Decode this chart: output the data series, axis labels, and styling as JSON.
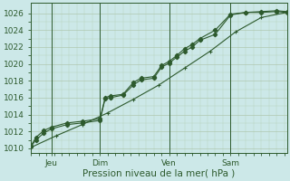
{
  "xlabel": "Pression niveau de la mer( hPa )",
  "bg_color": "#cce8e8",
  "plot_bg": "#d4eaea",
  "grid_color_major": "#b8c8b8",
  "grid_color_minor": "#c8d8c8",
  "line_color": "#2d5a2d",
  "ylim": [
    1009.5,
    1027.2
  ],
  "xlim": [
    0,
    100
  ],
  "yticks": [
    1010,
    1012,
    1014,
    1016,
    1018,
    1020,
    1022,
    1024,
    1026
  ],
  "xtick_positions": [
    8,
    27,
    54,
    78
  ],
  "xtick_labels": [
    "Jeu",
    "Dim",
    "Ven",
    "Sam"
  ],
  "vline_positions": [
    8,
    27,
    54,
    78
  ],
  "line1_x": [
    0,
    2,
    5,
    8,
    14,
    20,
    27,
    29,
    31,
    36,
    40,
    43,
    48,
    51,
    54,
    57,
    60,
    63,
    66,
    72,
    78,
    84,
    90,
    96,
    100
  ],
  "line1_y": [
    1010.2,
    1011.0,
    1011.8,
    1012.3,
    1012.8,
    1013.0,
    1013.3,
    1015.9,
    1016.0,
    1016.3,
    1017.5,
    1018.1,
    1018.3,
    1019.6,
    1020.1,
    1020.8,
    1021.5,
    1022.0,
    1022.8,
    1023.5,
    1025.8,
    1026.1,
    1026.1,
    1026.2,
    1026.1
  ],
  "line2_x": [
    0,
    2,
    5,
    8,
    14,
    20,
    27,
    29,
    31,
    36,
    40,
    43,
    48,
    51,
    54,
    57,
    60,
    63,
    66,
    72,
    78,
    84,
    90,
    96,
    100
  ],
  "line2_y": [
    1010.3,
    1011.3,
    1012.1,
    1012.5,
    1013.0,
    1013.2,
    1013.5,
    1016.0,
    1016.2,
    1016.4,
    1017.8,
    1018.3,
    1018.5,
    1019.8,
    1020.3,
    1021.0,
    1021.8,
    1022.3,
    1023.0,
    1024.0,
    1025.9,
    1026.1,
    1026.2,
    1026.3,
    1026.2
  ],
  "line3_x": [
    0,
    10,
    20,
    30,
    40,
    50,
    60,
    70,
    80,
    90,
    100
  ],
  "line3_y": [
    1010.1,
    1011.5,
    1012.8,
    1014.2,
    1015.8,
    1017.5,
    1019.5,
    1021.5,
    1023.8,
    1025.5,
    1026.1
  ]
}
